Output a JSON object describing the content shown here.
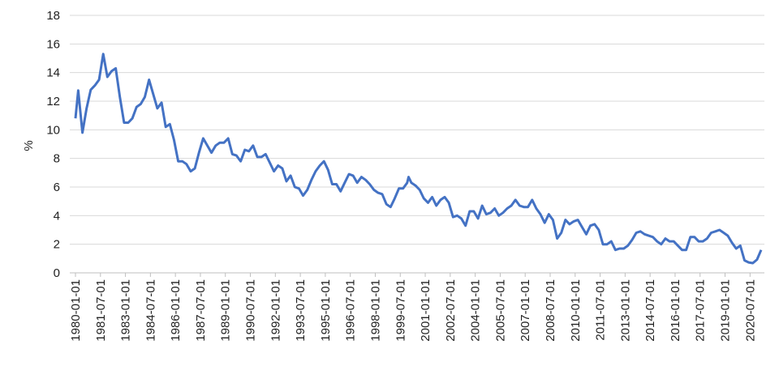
{
  "chart_data": {
    "type": "line",
    "y_label": "%",
    "color": "#4472c4",
    "grid": true,
    "ylim": [
      0,
      18
    ],
    "yticks": [
      0,
      2,
      4,
      6,
      8,
      10,
      12,
      14,
      16,
      18
    ],
    "xlim": [
      "1980-01-01",
      "2021-03-01"
    ],
    "xticks": [
      "1980-01-01",
      "1981-07-01",
      "1983-01-01",
      "1984-07-01",
      "1986-01-01",
      "1987-07-01",
      "1989-01-01",
      "1990-07-01",
      "1992-01-01",
      "1993-07-01",
      "1995-01-01",
      "1996-07-01",
      "1998-01-01",
      "1999-07-01",
      "2001-01-01",
      "2002-07-01",
      "2004-01-01",
      "2005-07-01",
      "2007-01-01",
      "2008-07-01",
      "2010-01-01",
      "2011-07-01",
      "2013-01-01",
      "2014-07-01",
      "2016-01-01",
      "2017-07-01",
      "2019-01-01",
      "2020-07-01"
    ],
    "x": [
      "1980-01-01",
      "1980-03-01",
      "1980-06-01",
      "1980-09-01",
      "1980-12-01",
      "1981-03-01",
      "1981-06-01",
      "1981-09-01",
      "1981-12-01",
      "1982-03-01",
      "1982-06-01",
      "1982-09-01",
      "1982-12-01",
      "1983-03-01",
      "1983-06-01",
      "1983-09-01",
      "1983-12-01",
      "1984-03-01",
      "1984-06-01",
      "1984-09-01",
      "1984-12-01",
      "1985-03-01",
      "1985-06-01",
      "1985-09-01",
      "1985-12-01",
      "1986-03-01",
      "1986-06-01",
      "1986-09-01",
      "1986-12-01",
      "1987-03-01",
      "1987-06-01",
      "1987-09-01",
      "1987-12-01",
      "1988-03-01",
      "1988-06-01",
      "1988-09-01",
      "1988-12-01",
      "1989-03-01",
      "1989-06-01",
      "1989-09-01",
      "1989-12-01",
      "1990-03-01",
      "1990-06-01",
      "1990-09-01",
      "1990-12-01",
      "1991-03-01",
      "1991-06-01",
      "1991-09-01",
      "1991-12-01",
      "1992-03-01",
      "1992-06-01",
      "1992-09-01",
      "1992-12-01",
      "1993-03-01",
      "1993-06-01",
      "1993-09-01",
      "1993-12-01",
      "1994-03-01",
      "1994-06-01",
      "1994-09-01",
      "1994-12-01",
      "1995-03-01",
      "1995-06-01",
      "1995-09-01",
      "1995-12-01",
      "1996-03-01",
      "1996-06-01",
      "1996-09-01",
      "1996-12-01",
      "1997-03-01",
      "1997-06-01",
      "1997-09-01",
      "1997-12-01",
      "1998-03-01",
      "1998-06-01",
      "1998-09-01",
      "1998-12-01",
      "1999-03-01",
      "1999-06-01",
      "1999-09-01",
      "1999-12-01",
      "2000-01-01",
      "2000-03-01",
      "2000-06-01",
      "2000-09-01",
      "2000-12-01",
      "2001-03-01",
      "2001-06-01",
      "2001-09-01",
      "2001-12-01",
      "2002-03-01",
      "2002-06-01",
      "2002-09-01",
      "2002-12-01",
      "2003-03-01",
      "2003-06-01",
      "2003-09-01",
      "2003-12-01",
      "2004-03-01",
      "2004-06-01",
      "2004-09-01",
      "2004-12-01",
      "2005-03-01",
      "2005-06-01",
      "2005-09-01",
      "2005-12-01",
      "2006-03-01",
      "2006-06-01",
      "2006-09-01",
      "2006-12-01",
      "2007-03-01",
      "2007-06-01",
      "2007-09-01",
      "2007-12-01",
      "2008-03-01",
      "2008-06-01",
      "2008-09-01",
      "2008-12-01",
      "2009-03-01",
      "2009-06-01",
      "2009-09-01",
      "2009-12-01",
      "2010-03-01",
      "2010-06-01",
      "2010-09-01",
      "2010-12-01",
      "2011-03-01",
      "2011-06-01",
      "2011-09-01",
      "2011-12-01",
      "2012-03-01",
      "2012-06-01",
      "2012-09-01",
      "2012-12-01",
      "2013-03-01",
      "2013-06-01",
      "2013-09-01",
      "2013-12-01",
      "2014-03-01",
      "2014-06-01",
      "2014-09-01",
      "2014-12-01",
      "2015-03-01",
      "2015-06-01",
      "2015-09-01",
      "2015-12-01",
      "2016-03-01",
      "2016-06-01",
      "2016-09-01",
      "2016-12-01",
      "2017-03-01",
      "2017-06-01",
      "2017-09-01",
      "2017-12-01",
      "2018-03-01",
      "2018-06-01",
      "2018-09-01",
      "2018-12-01",
      "2019-03-01",
      "2019-06-01",
      "2019-09-01",
      "2019-12-01",
      "2020-03-01",
      "2020-06-01",
      "2020-09-01",
      "2020-12-01",
      "2021-03-01"
    ],
    "values": [
      10.8,
      12.75,
      9.8,
      11.5,
      12.8,
      13.1,
      13.5,
      15.3,
      13.7,
      14.1,
      14.3,
      12.3,
      10.5,
      10.5,
      10.8,
      11.6,
      11.8,
      12.3,
      13.5,
      12.5,
      11.5,
      11.9,
      10.2,
      10.4,
      9.3,
      7.8,
      7.8,
      7.6,
      7.1,
      7.3,
      8.4,
      9.4,
      8.9,
      8.4,
      8.9,
      9.1,
      9.1,
      9.4,
      8.3,
      8.2,
      7.8,
      8.6,
      8.5,
      8.9,
      8.1,
      8.1,
      8.3,
      7.7,
      7.1,
      7.5,
      7.3,
      6.4,
      6.8,
      6.0,
      5.9,
      5.4,
      5.8,
      6.5,
      7.1,
      7.5,
      7.8,
      7.2,
      6.2,
      6.2,
      5.7,
      6.3,
      6.9,
      6.8,
      6.3,
      6.7,
      6.5,
      6.2,
      5.8,
      5.6,
      5.5,
      4.8,
      4.6,
      5.2,
      5.9,
      5.9,
      6.3,
      6.7,
      6.3,
      6.1,
      5.8,
      5.2,
      4.9,
      5.3,
      4.7,
      5.1,
      5.3,
      4.9,
      3.9,
      4.0,
      3.8,
      3.3,
      4.3,
      4.3,
      3.8,
      4.7,
      4.1,
      4.2,
      4.5,
      4.0,
      4.2,
      4.5,
      4.7,
      5.1,
      4.7,
      4.6,
      4.6,
      5.1,
      4.5,
      4.1,
      3.5,
      4.1,
      3.7,
      2.4,
      2.8,
      3.7,
      3.4,
      3.6,
      3.7,
      3.2,
      2.7,
      3.3,
      3.4,
      3.0,
      2.0,
      2.0,
      2.2,
      1.6,
      1.7,
      1.7,
      1.9,
      2.3,
      2.8,
      2.9,
      2.7,
      2.6,
      2.5,
      2.2,
      2.0,
      2.4,
      2.2,
      2.2,
      1.9,
      1.6,
      1.6,
      2.5,
      2.5,
      2.2,
      2.2,
      2.4,
      2.8,
      2.9,
      3.0,
      2.8,
      2.6,
      2.1,
      1.7,
      1.9,
      0.87,
      0.73,
      0.68,
      0.93,
      1.6
    ]
  }
}
